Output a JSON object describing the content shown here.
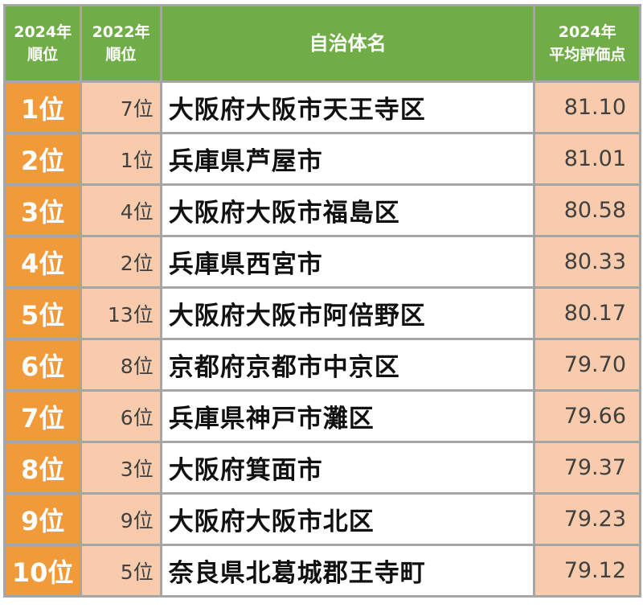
{
  "header": {
    "rank_2024_line1": "2024年",
    "rank_2024_line2": "順位",
    "rank_2022_line1": "2022年",
    "rank_2022_line2": "順位",
    "municipality": "自治体名",
    "score_line1": "2024年",
    "score_line2": "平均評価点"
  },
  "rows": [
    {
      "rank": "1位",
      "prev_rank": "7位",
      "name": "大阪府大阪市天王寺区",
      "score": "81.10"
    },
    {
      "rank": "2位",
      "prev_rank": "1位",
      "name": "兵庫県芦屋市",
      "score": "81.01"
    },
    {
      "rank": "3位",
      "prev_rank": "4位",
      "name": "大阪府大阪市福島区",
      "score": "80.58"
    },
    {
      "rank": "4位",
      "prev_rank": "2位",
      "name": "兵庫県西宮市",
      "score": "80.33"
    },
    {
      "rank": "5位",
      "prev_rank": "13位",
      "name": "大阪府大阪市阿倍野区",
      "score": "80.17"
    },
    {
      "rank": "6位",
      "prev_rank": "8位",
      "name": "京都府京都市中京区",
      "score": "79.70"
    },
    {
      "rank": "7位",
      "prev_rank": "6位",
      "name": "兵庫県神戸市灘区",
      "score": "79.66"
    },
    {
      "rank": "8位",
      "prev_rank": "3位",
      "name": "大阪府箕面市",
      "score": "79.37"
    },
    {
      "rank": "9位",
      "prev_rank": "9位",
      "name": "大阪府大阪市北区",
      "score": "79.23"
    },
    {
      "rank": "10位",
      "prev_rank": "5位",
      "name": "奈良県北葛城郡王寺町",
      "score": "79.12"
    }
  ],
  "colors": {
    "header_bg": "#70ad47",
    "rank_bg": "#f09a3a",
    "prev_rank_bg": "#f8cbad",
    "score_bg": "#f8cbad",
    "grid_line": "#a6a6a6"
  }
}
